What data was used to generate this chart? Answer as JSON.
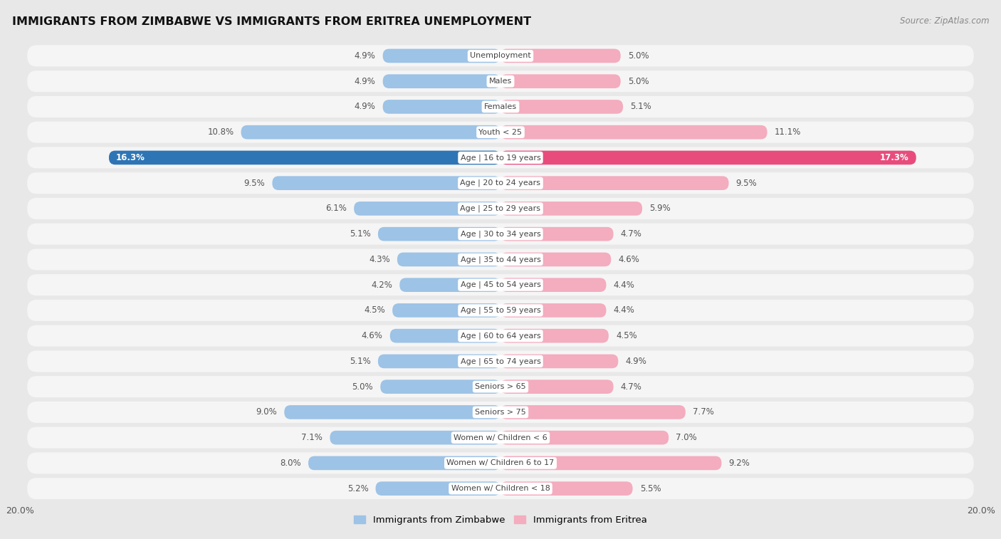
{
  "title": "IMMIGRANTS FROM ZIMBABWE VS IMMIGRANTS FROM ERITREA UNEMPLOYMENT",
  "source": "Source: ZipAtlas.com",
  "categories": [
    "Unemployment",
    "Males",
    "Females",
    "Youth < 25",
    "Age | 16 to 19 years",
    "Age | 20 to 24 years",
    "Age | 25 to 29 years",
    "Age | 30 to 34 years",
    "Age | 35 to 44 years",
    "Age | 45 to 54 years",
    "Age | 55 to 59 years",
    "Age | 60 to 64 years",
    "Age | 65 to 74 years",
    "Seniors > 65",
    "Seniors > 75",
    "Women w/ Children < 6",
    "Women w/ Children 6 to 17",
    "Women w/ Children < 18"
  ],
  "zimbabwe_values": [
    4.9,
    4.9,
    4.9,
    10.8,
    16.3,
    9.5,
    6.1,
    5.1,
    4.3,
    4.2,
    4.5,
    4.6,
    5.1,
    5.0,
    9.0,
    7.1,
    8.0,
    5.2
  ],
  "eritrea_values": [
    5.0,
    5.0,
    5.1,
    11.1,
    17.3,
    9.5,
    5.9,
    4.7,
    4.6,
    4.4,
    4.4,
    4.5,
    4.9,
    4.7,
    7.7,
    7.0,
    9.2,
    5.5
  ],
  "zimbabwe_color": "#9dc3e6",
  "eritrea_color": "#f4acbf",
  "zimbabwe_highlight_color": "#2e75b6",
  "eritrea_highlight_color": "#e84c7d",
  "highlight_rows": [
    4
  ],
  "background_color": "#e8e8e8",
  "row_bg_color": "#f5f5f5",
  "bar_bg_color": "#ffffff",
  "axis_limit": 20.0,
  "legend_zimbabwe": "Immigrants from Zimbabwe",
  "legend_eritrea": "Immigrants from Eritrea",
  "label_color": "#555555",
  "highlight_label_color": "#ffffff"
}
